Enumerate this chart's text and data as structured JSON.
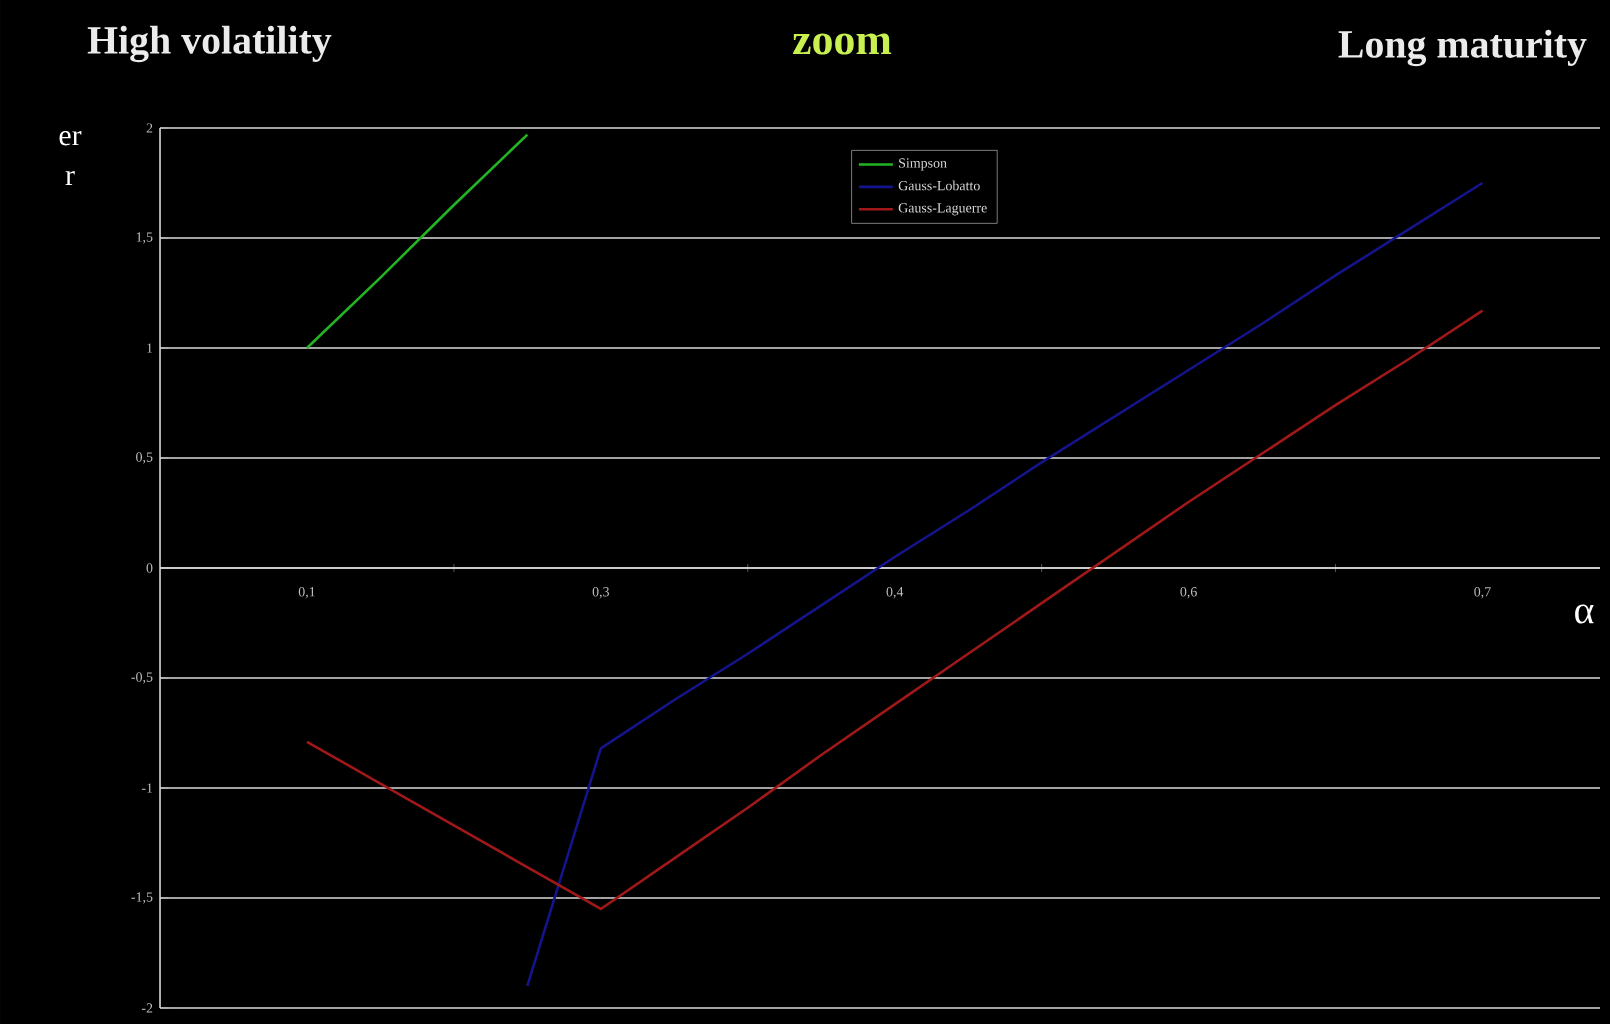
{
  "chart_data": {
    "type": "line",
    "title": "zoom",
    "annotations": [
      "High volatility",
      "Long maturity"
    ],
    "xlabel": "α",
    "ylabel": "er r",
    "categories": [
      "0,1",
      null,
      null,
      null,
      "0,3",
      null,
      null,
      null,
      "0,4",
      null,
      null,
      null,
      "0,6",
      null,
      null,
      null,
      "0,7"
    ],
    "series": [
      {
        "name": "Simpson",
        "color": "#22b422",
        "values": [
          1.0,
          1.32,
          1.65,
          1.97,
          null,
          null,
          null,
          null,
          null,
          null,
          null,
          null,
          null,
          null,
          null,
          null,
          null
        ]
      },
      {
        "name": "Gauss-Lobatto",
        "color": "#14148c",
        "values": [
          null,
          null,
          null,
          -1.9,
          -0.82,
          -0.6,
          -0.39,
          -0.17,
          0.05,
          0.26,
          0.48,
          0.69,
          0.9,
          1.11,
          1.33,
          1.54,
          1.75
        ]
      },
      {
        "name": "Gauss-Laguerre",
        "color": "#a01818",
        "values": [
          -0.79,
          -0.98,
          -1.17,
          -1.36,
          -1.55,
          -1.32,
          -1.09,
          -0.85,
          -0.62,
          -0.39,
          -0.16,
          0.07,
          0.3,
          0.52,
          0.74,
          0.95,
          1.17
        ]
      }
    ],
    "ylim": [
      -2,
      2
    ],
    "yticks": [
      -2,
      {
        "value": -1.5,
        "label": "-1,5"
      },
      -1,
      {
        "value": -0.5,
        "label": "-0,5"
      },
      0,
      {
        "value": 0.5,
        "label": "0,5"
      },
      1,
      {
        "value": 1.5,
        "label": "1,5"
      },
      2
    ],
    "grid": "y",
    "legend": "top",
    "marker": "none",
    "line_style": "solid"
  }
}
